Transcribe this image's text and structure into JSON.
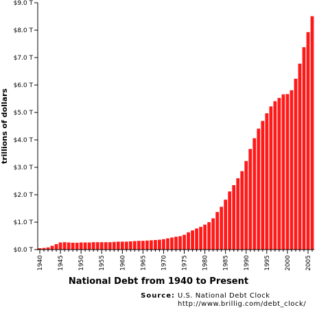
{
  "chart_data": {
    "type": "bar",
    "title": "National Debt from 1940 to Present",
    "xlabel": "",
    "ylabel": "trillions of dollars",
    "y_tick_labels": [
      "$0.0 T",
      "$1.0 T",
      "$2.0 T",
      "$3.0 T",
      "$4.0 T",
      "$5.0 T",
      "$6.0 T",
      "$7.0 T",
      "$8.0 T",
      "$9.0 T"
    ],
    "x_tick_labels": [
      "1940",
      "1945",
      "1950",
      "1955",
      "1960",
      "1965",
      "1970",
      "1975",
      "1980",
      "1985",
      "1990",
      "1995",
      "2000",
      "2005"
    ],
    "ylim": [
      0,
      9
    ],
    "xlim": [
      1940,
      2006
    ],
    "bar_color": "#ff1a1a",
    "x": [
      1940,
      1941,
      1942,
      1943,
      1944,
      1945,
      1946,
      1947,
      1948,
      1949,
      1950,
      1951,
      1952,
      1953,
      1954,
      1955,
      1956,
      1957,
      1958,
      1959,
      1960,
      1961,
      1962,
      1963,
      1964,
      1965,
      1966,
      1967,
      1968,
      1969,
      1970,
      1971,
      1972,
      1973,
      1974,
      1975,
      1976,
      1977,
      1978,
      1979,
      1980,
      1981,
      1982,
      1983,
      1984,
      1985,
      1986,
      1987,
      1988,
      1989,
      1990,
      1991,
      1992,
      1993,
      1994,
      1995,
      1996,
      1997,
      1998,
      1999,
      2000,
      2001,
      2002,
      2003,
      2004,
      2005,
      2006
    ],
    "values": [
      0.05,
      0.06,
      0.08,
      0.14,
      0.2,
      0.26,
      0.27,
      0.26,
      0.25,
      0.25,
      0.26,
      0.26,
      0.26,
      0.27,
      0.27,
      0.27,
      0.27,
      0.27,
      0.28,
      0.29,
      0.29,
      0.29,
      0.3,
      0.31,
      0.32,
      0.32,
      0.33,
      0.34,
      0.35,
      0.36,
      0.38,
      0.41,
      0.44,
      0.47,
      0.49,
      0.54,
      0.63,
      0.7,
      0.77,
      0.83,
      0.91,
      1.0,
      1.14,
      1.37,
      1.56,
      1.82,
      2.12,
      2.35,
      2.6,
      2.86,
      3.23,
      3.67,
      4.06,
      4.41,
      4.69,
      4.97,
      5.22,
      5.41,
      5.53,
      5.66,
      5.67,
      5.81,
      6.23,
      6.78,
      7.38,
      7.93,
      8.51
    ]
  },
  "source": {
    "label": "Source:",
    "name": "U.S. National Debt Clock",
    "url": "http://www.brillig.com/debt_clock/"
  }
}
